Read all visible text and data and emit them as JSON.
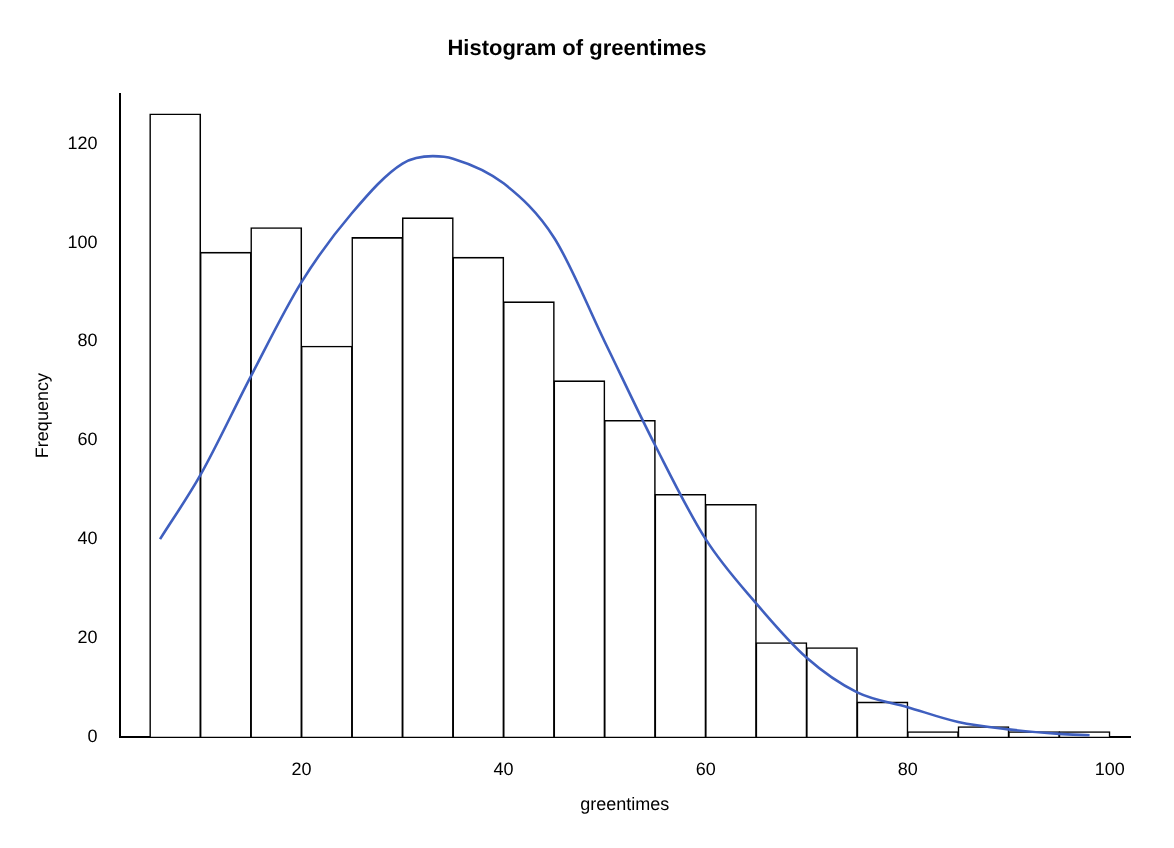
{
  "chart_data": {
    "type": "histogram",
    "title": "Histogram of greentimes",
    "xlabel": "greentimes",
    "ylabel": "Frequency",
    "bins": [
      5,
      10,
      15,
      20,
      25,
      30,
      35,
      40,
      45,
      50,
      55,
      60,
      65,
      70,
      75,
      80,
      85,
      90,
      95,
      100
    ],
    "values": [
      126,
      98,
      103,
      79,
      101,
      105,
      97,
      88,
      72,
      64,
      49,
      47,
      19,
      18,
      7,
      1,
      2,
      1,
      1
    ],
    "color": "#ffffff",
    "series": [
      {
        "type": "line",
        "color": "#3f5fbf",
        "x": [
          6,
          10,
          15,
          20,
          25,
          30,
          33,
          35,
          40,
          45,
          50,
          55,
          60,
          65,
          70,
          75,
          80,
          85,
          90,
          95,
          98
        ],
        "values": [
          40,
          53,
          73,
          92,
          106,
          116,
          117.5,
          117,
          112,
          101,
          80,
          59,
          40,
          27,
          16,
          9,
          6,
          3,
          1.5,
          0.6,
          0.3
        ]
      }
    ],
    "xlim": [
      2,
      102
    ],
    "ylim": [
      0,
      130
    ],
    "xticks": [
      20,
      40,
      60,
      80,
      100
    ],
    "yticks": [
      0,
      20,
      40,
      60,
      80,
      100,
      120
    ],
    "grid": false,
    "legend": false,
    "marker": "none"
  }
}
